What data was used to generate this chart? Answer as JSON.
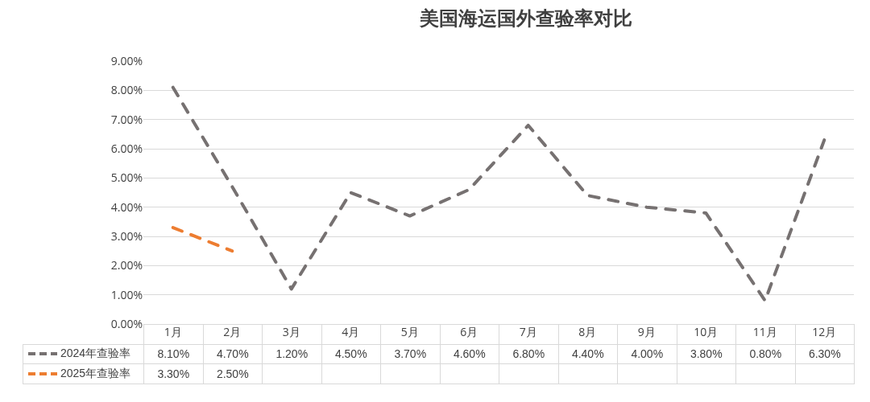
{
  "chart_data": {
    "type": "line",
    "title": "美国海运国外查验率对比",
    "categories": [
      "1月",
      "2月",
      "3月",
      "4月",
      "5月",
      "6月",
      "7月",
      "8月",
      "9月",
      "10月",
      "11月",
      "12月"
    ],
    "series": [
      {
        "name": "2024年查验率",
        "color": "#767171",
        "values": [
          8.1,
          4.7,
          1.2,
          4.5,
          3.7,
          4.6,
          6.8,
          4.4,
          4.0,
          3.8,
          0.8,
          6.3
        ],
        "value_labels": [
          "8.10%",
          "4.70%",
          "1.20%",
          "4.50%",
          "3.70%",
          "4.60%",
          "6.80%",
          "4.40%",
          "4.00%",
          "3.80%",
          "0.80%",
          "6.30%"
        ]
      },
      {
        "name": "2025年查验率",
        "color": "#ed7d31",
        "values": [
          3.3,
          2.5,
          null,
          null,
          null,
          null,
          null,
          null,
          null,
          null,
          null,
          null
        ],
        "value_labels": [
          "3.30%",
          "2.50%",
          null,
          null,
          null,
          null,
          null,
          null,
          null,
          null,
          null,
          null
        ]
      }
    ],
    "ylim": [
      0,
      9
    ],
    "yticks": [
      {
        "value": 0,
        "label": "0.00%"
      },
      {
        "value": 1,
        "label": "1.00%"
      },
      {
        "value": 2,
        "label": "2.00%"
      },
      {
        "value": 3,
        "label": "3.00%"
      },
      {
        "value": 4,
        "label": "4.00%"
      },
      {
        "value": 5,
        "label": "5.00%"
      },
      {
        "value": 6,
        "label": "6.00%"
      },
      {
        "value": 7,
        "label": "7.00%"
      },
      {
        "value": 8,
        "label": "8.00%"
      },
      {
        "value": 9,
        "label": "9.00%"
      }
    ],
    "grid": "y",
    "legend": "bottom left",
    "marker": "none",
    "line_style": "dashed"
  }
}
